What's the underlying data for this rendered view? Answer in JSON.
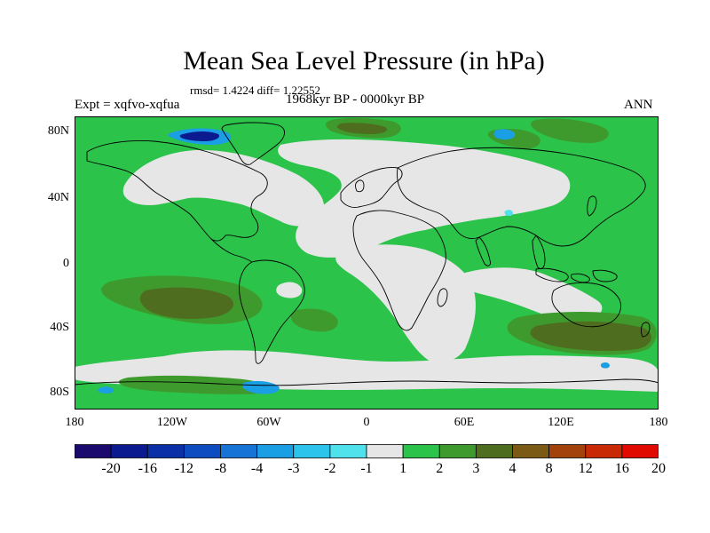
{
  "title": "Mean Sea Level Pressure (in hPa)",
  "stats": "rmsd= 1.4224 diff= 1.22552",
  "expt": "Expt = xqfvo-xqfua",
  "period": "1968kyr BP - 0000kyr BP",
  "season": "ANN",
  "y_ticks": [
    "80N",
    "40N",
    "0",
    "40S",
    "80S"
  ],
  "y_tick_values": [
    80,
    40,
    0,
    -40,
    -80
  ],
  "x_ticks": [
    "180",
    "120W",
    "60W",
    "0",
    "60E",
    "120E",
    "180"
  ],
  "x_tick_values": [
    -180,
    -120,
    -60,
    0,
    60,
    120,
    180
  ],
  "lon_range": [
    -180,
    180
  ],
  "lat_range": [
    -90,
    90
  ],
  "colorbar": {
    "labels": [
      "-20",
      "-16",
      "-12",
      "-8",
      "-4",
      "-3",
      "-2",
      "-1",
      "1",
      "2",
      "3",
      "4",
      "8",
      "12",
      "16",
      "20"
    ],
    "colors": [
      "#1a0a6e",
      "#0c1a8f",
      "#0b2fa6",
      "#0d4cc0",
      "#1873d6",
      "#1a9ee4",
      "#2cc4ea",
      "#4fe2ec",
      "#e6e6e6",
      "#2cc34a",
      "#3f9a2e",
      "#4e6d1f",
      "#7a5a14",
      "#a3420b",
      "#c72a05",
      "#e00a00"
    ]
  },
  "map_colors": {
    "ocean_base": "#2cc34a",
    "neutral": "#e6e6e6",
    "medium": "#3f9a2e",
    "strong": "#4e6d1f",
    "neg_dark": "#0c1a8f",
    "neg_mid": "#1a9ee4",
    "neg_light": "#4fe2ec",
    "coast": "#000000"
  }
}
